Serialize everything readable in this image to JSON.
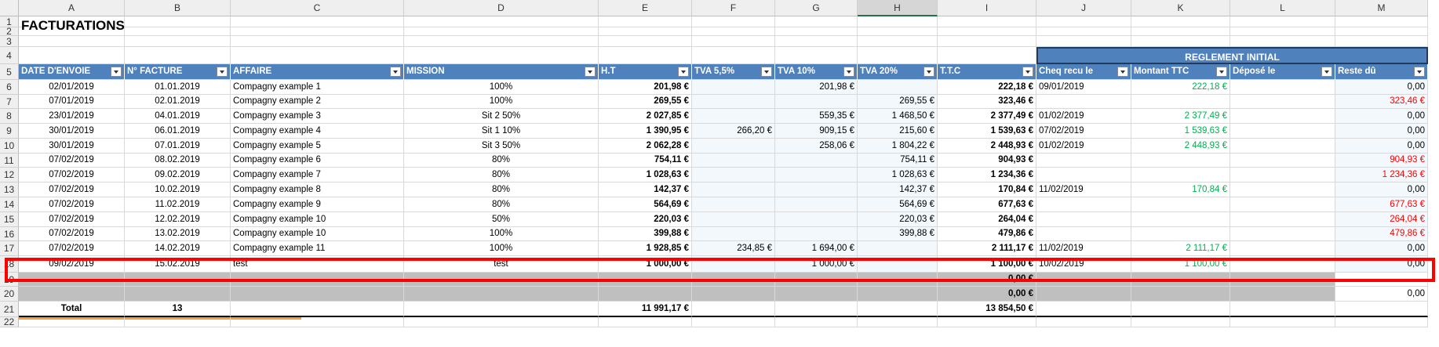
{
  "sheet": {
    "title": "FACTURATIONS",
    "group_header": "REGLEMENT INITIAL",
    "columns": [
      "A",
      "B",
      "C",
      "D",
      "E",
      "F",
      "G",
      "H",
      "I",
      "J",
      "K",
      "L",
      "M"
    ],
    "selected_column": "H",
    "row_numbers": [
      "1",
      "2",
      "3",
      "4",
      "5",
      "6",
      "7",
      "8",
      "9",
      "10",
      "11",
      "12",
      "13",
      "14",
      "15",
      "16",
      "17",
      "18",
      "19",
      "20",
      "21",
      "22"
    ],
    "headers": [
      "DATE D'ENVOIE",
      "N° FACTURE",
      "AFFAIRE",
      "MISSION",
      "H.T",
      "TVA 5,5%",
      "TVA 10%",
      "TVA 20%",
      "T.T.C",
      "Cheq recu le",
      "Montant TTC",
      "Déposé le",
      "Reste dû"
    ],
    "rows": [
      {
        "date": "02/01/2019",
        "num": "01.01.2019",
        "affaire": "Compagny example 1",
        "mission": "100%",
        "ht": "201,98 €",
        "t55": "",
        "t10": "201,98 €",
        "t20": "",
        "ttc": "222,18 €",
        "cheq": "09/01/2019",
        "montant": "222,18 €",
        "depose": "",
        "reste": "0,00",
        "reste_color": "black"
      },
      {
        "date": "07/01/2019",
        "num": "02.01.2019",
        "affaire": "Compagny example 2",
        "mission": "100%",
        "ht": "269,55 €",
        "t55": "",
        "t10": "",
        "t20": "269,55 €",
        "ttc": "323,46 €",
        "cheq": "",
        "montant": "",
        "depose": "",
        "reste": "323,46 €",
        "reste_color": "red"
      },
      {
        "date": "23/01/2019",
        "num": "04.01.2019",
        "affaire": "Compagny example 3",
        "mission": "Sit 2  50%",
        "ht": "2 027,85 €",
        "t55": "",
        "t10": "559,35 €",
        "t20": "1 468,50 €",
        "ttc": "2 377,49 €",
        "cheq": "01/02/2019",
        "montant": "2 377,49 €",
        "depose": "",
        "reste": "0,00",
        "reste_color": "black"
      },
      {
        "date": "30/01/2019",
        "num": "06.01.2019",
        "affaire": "Compagny example 4",
        "mission": "Sit 1  10%",
        "ht": "1 390,95 €",
        "t55": "266,20 €",
        "t10": "909,15 €",
        "t20": "215,60 €",
        "ttc": "1 539,63 €",
        "cheq": "07/02/2019",
        "montant": "1 539,63 €",
        "depose": "",
        "reste": "0,00",
        "reste_color": "black"
      },
      {
        "date": "30/01/2019",
        "num": "07.01.2019",
        "affaire": "Compagny example 5",
        "mission": "Sit 3  50%",
        "ht": "2 062,28 €",
        "t55": "",
        "t10": "258,06 €",
        "t20": "1 804,22 €",
        "ttc": "2 448,93 €",
        "cheq": "01/02/2019",
        "montant": "2 448,93 €",
        "depose": "",
        "reste": "0,00",
        "reste_color": "black"
      },
      {
        "date": "07/02/2019",
        "num": "08.02.2019",
        "affaire": "Compagny example 6",
        "mission": "80%",
        "ht": "754,11 €",
        "t55": "",
        "t10": "",
        "t20": "754,11 €",
        "ttc": "904,93 €",
        "cheq": "",
        "montant": "",
        "depose": "",
        "reste": "904,93 €",
        "reste_color": "red"
      },
      {
        "date": "07/02/2019",
        "num": "09.02.2019",
        "affaire": "Compagny example 7",
        "mission": "80%",
        "ht": "1 028,63 €",
        "t55": "",
        "t10": "",
        "t20": "1 028,63 €",
        "ttc": "1 234,36 €",
        "cheq": "",
        "montant": "",
        "depose": "",
        "reste": "1 234,36 €",
        "reste_color": "red"
      },
      {
        "date": "07/02/2019",
        "num": "10.02.2019",
        "affaire": "Compagny example 8",
        "mission": "80%",
        "ht": "142,37 €",
        "t55": "",
        "t10": "",
        "t20": "142,37 €",
        "ttc": "170,84 €",
        "cheq": "11/02/2019",
        "montant": "170,84 €",
        "depose": "",
        "reste": "0,00",
        "reste_color": "black"
      },
      {
        "date": "07/02/2019",
        "num": "11.02.2019",
        "affaire": "Compagny example 9",
        "mission": "80%",
        "ht": "564,69 €",
        "t55": "",
        "t10": "",
        "t20": "564,69 €",
        "ttc": "677,63 €",
        "cheq": "",
        "montant": "",
        "depose": "",
        "reste": "677,63 €",
        "reste_color": "red"
      },
      {
        "date": "07/02/2019",
        "num": "12.02.2019",
        "affaire": "Compagny example 10",
        "mission": "50%",
        "ht": "220,03 €",
        "t55": "",
        "t10": "",
        "t20": "220,03 €",
        "ttc": "264,04 €",
        "cheq": "",
        "montant": "",
        "depose": "",
        "reste": "264,04 €",
        "reste_color": "red"
      },
      {
        "date": "07/02/2019",
        "num": "13.02.2019",
        "affaire": "Compagny example 10",
        "mission": "100%",
        "ht": "399,88 €",
        "t55": "",
        "t10": "",
        "t20": "399,88 €",
        "ttc": "479,86 €",
        "cheq": "",
        "montant": "",
        "depose": "",
        "reste": "479,86 €",
        "reste_color": "red"
      },
      {
        "date": "07/02/2019",
        "num": "14.02.2019",
        "affaire": "Compagny example 11",
        "mission": "100%",
        "ht": "1 928,85 €",
        "t55": "234,85 €",
        "t10": "1 694,00 €",
        "t20": "",
        "ttc": "2 111,17 €",
        "cheq": "11/02/2019",
        "montant": "2 111,17 €",
        "depose": "",
        "reste": "0,00",
        "reste_color": "black"
      },
      {
        "date": "09/02/2019",
        "num": "15.02.2019",
        "affaire": "test",
        "mission": "test",
        "ht": "1 000,00 €",
        "t55": "",
        "t10": "1 000,00 €",
        "t20": "",
        "ttc": "1 100,00 €",
        "cheq": "10/02/2019",
        "montant": "1 100,00 €",
        "depose": "",
        "reste": "0,00",
        "reste_color": "black"
      }
    ],
    "row19_ttc": "0,00 €",
    "row20_ttc": "0,00 €",
    "row20_reste": "0,00",
    "total_label": "Total",
    "total_count": "13",
    "total_ht": "11 991,17 €",
    "total_ttc": "13 854,50 €",
    "colors": {
      "header_blue": "#4f81bd",
      "highlight_red": "#ff0000",
      "green_text": "#00b050",
      "red_text": "#ff0000",
      "gray_row": "#bfbfbf"
    }
  }
}
